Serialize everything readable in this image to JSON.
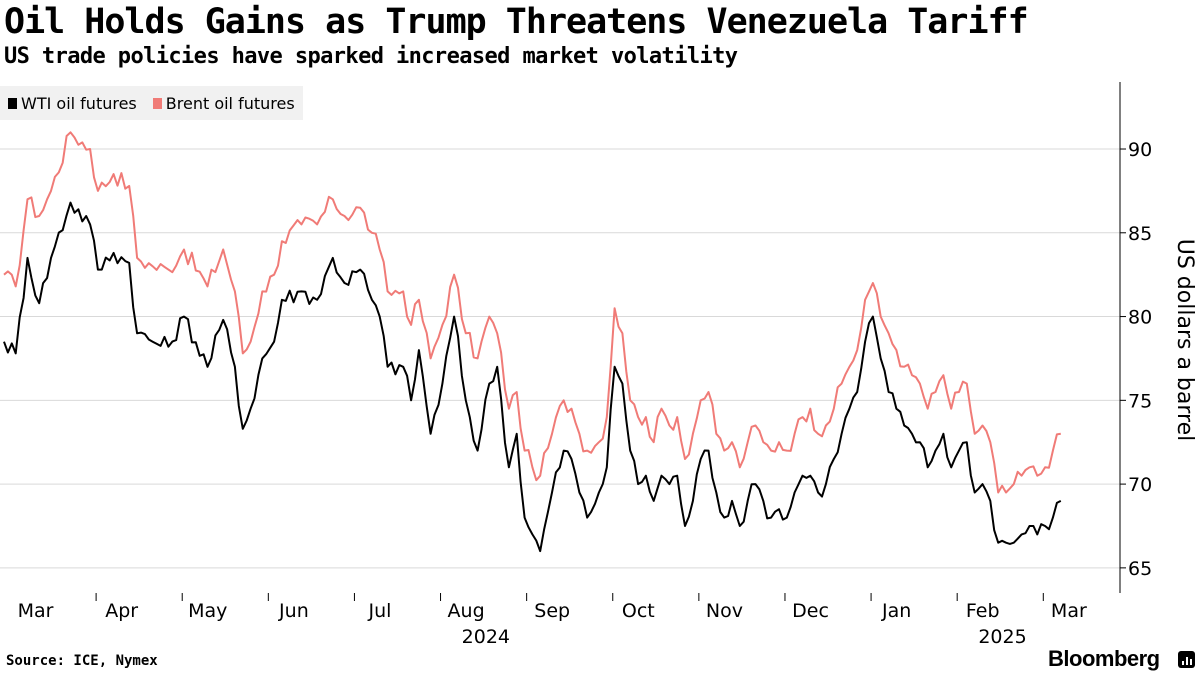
{
  "chart_data": {
    "type": "line",
    "title": "Oil Holds Gains as Trump Threatens Venezuela Tariff",
    "subtitle": "US trade policies have sparked increased market volatility",
    "ylabel": "US dollars a barrel",
    "ylim": [
      63.5,
      94
    ],
    "yticks": [
      65,
      70,
      75,
      80,
      85,
      90
    ],
    "grid": true,
    "legend_position": "top-left",
    "x_months": [
      {
        "label": "Mar",
        "index": 0
      },
      {
        "label": "Apr",
        "index": 22
      },
      {
        "label": "May",
        "index": 44
      },
      {
        "label": "Jun",
        "index": 66
      },
      {
        "label": "Jul",
        "index": 88
      },
      {
        "label": "Aug",
        "index": 110
      },
      {
        "label": "Sep",
        "index": 132
      },
      {
        "label": "Oct",
        "index": 154
      },
      {
        "label": "Nov",
        "index": 176
      },
      {
        "label": "Dec",
        "index": 198
      },
      {
        "label": "Jan",
        "index": 220
      },
      {
        "label": "Feb",
        "index": 242
      },
      {
        "label": "Mar",
        "index": 264
      }
    ],
    "x_years": [
      {
        "label": "2024",
        "index": 110
      },
      {
        "label": "2025",
        "index": 242
      }
    ],
    "x_count": 280,
    "series": [
      {
        "name": "WTI oil futures",
        "color": "#000000",
        "anchors": [
          [
            0,
            78.5
          ],
          [
            3,
            77.8
          ],
          [
            6,
            83.5
          ],
          [
            9,
            80.8
          ],
          [
            12,
            83.5
          ],
          [
            17,
            86.8
          ],
          [
            22,
            85.5
          ],
          [
            24,
            82.8
          ],
          [
            28,
            83.8
          ],
          [
            32,
            83.2
          ],
          [
            34,
            79
          ],
          [
            38,
            78.5
          ],
          [
            42,
            78.2
          ],
          [
            46,
            80
          ],
          [
            52,
            77
          ],
          [
            56,
            79.8
          ],
          [
            59,
            77
          ],
          [
            61,
            73.3
          ],
          [
            63,
            74.5
          ],
          [
            66,
            77.5
          ],
          [
            69,
            78.5
          ],
          [
            71,
            81
          ],
          [
            76,
            81.5
          ],
          [
            80,
            81
          ],
          [
            84,
            83.5
          ],
          [
            87,
            82
          ],
          [
            91,
            82.8
          ],
          [
            94,
            81
          ],
          [
            96,
            80
          ],
          [
            98,
            77
          ],
          [
            102,
            77
          ],
          [
            104,
            75
          ],
          [
            106,
            78
          ],
          [
            109,
            73
          ],
          [
            112,
            76
          ],
          [
            115,
            80
          ],
          [
            118,
            75
          ],
          [
            121,
            72
          ],
          [
            124,
            76
          ],
          [
            126,
            77
          ],
          [
            129,
            71
          ],
          [
            131,
            73
          ],
          [
            133,
            68
          ],
          [
            135,
            67
          ],
          [
            137,
            66
          ],
          [
            140,
            69.5
          ],
          [
            143,
            72
          ],
          [
            145,
            71.5
          ],
          [
            147,
            69.5
          ],
          [
            149,
            68
          ],
          [
            152,
            69.5
          ],
          [
            154,
            71
          ],
          [
            156,
            77
          ],
          [
            158,
            76
          ],
          [
            160,
            72
          ],
          [
            162,
            70
          ],
          [
            164,
            70.5
          ],
          [
            166,
            69
          ],
          [
            168,
            70.5
          ],
          [
            170,
            70
          ],
          [
            172,
            70.5
          ],
          [
            174,
            67.5
          ],
          [
            176,
            69
          ],
          [
            178,
            71.5
          ],
          [
            180,
            72
          ],
          [
            182,
            69.5
          ],
          [
            184,
            68
          ],
          [
            186,
            69
          ],
          [
            188,
            67.5
          ],
          [
            190,
            69
          ],
          [
            192,
            70
          ],
          [
            194,
            69
          ],
          [
            196,
            68
          ],
          [
            198,
            68.5
          ],
          [
            200,
            68
          ],
          [
            202,
            69.5
          ],
          [
            204,
            70.5
          ],
          [
            206,
            70.5
          ],
          [
            208,
            69.5
          ],
          [
            210,
            70
          ],
          [
            212,
            71.5
          ],
          [
            214,
            73
          ],
          [
            216,
            74.5
          ],
          [
            218,
            75.5
          ],
          [
            220,
            78.5
          ],
          [
            222,
            80
          ],
          [
            224,
            77.5
          ],
          [
            226,
            75.5
          ],
          [
            228,
            74.5
          ],
          [
            230,
            73.5
          ],
          [
            232,
            73
          ],
          [
            234,
            72.5
          ],
          [
            236,
            71
          ],
          [
            238,
            72
          ],
          [
            240,
            73
          ],
          [
            242,
            71
          ],
          [
            244,
            72
          ],
          [
            246,
            72.5
          ],
          [
            248,
            69.5
          ],
          [
            250,
            70
          ],
          [
            252,
            69
          ],
          [
            254,
            66.5
          ],
          [
            256,
            66.5
          ],
          [
            258,
            66.5
          ],
          [
            260,
            67
          ],
          [
            262,
            67.5
          ],
          [
            264,
            67
          ],
          [
            266,
            67.5
          ],
          [
            268,
            68
          ],
          [
            270,
            69
          ]
        ]
      },
      {
        "name": "Brent oil futures",
        "color": "#f07b77",
        "anchors": [
          [
            0,
            82.5
          ],
          [
            3,
            81.8
          ],
          [
            6,
            87
          ],
          [
            9,
            86
          ],
          [
            12,
            87.5
          ],
          [
            17,
            91
          ],
          [
            22,
            90
          ],
          [
            24,
            87.5
          ],
          [
            28,
            88.5
          ],
          [
            32,
            87.8
          ],
          [
            34,
            83.5
          ],
          [
            38,
            83
          ],
          [
            42,
            82.8
          ],
          [
            46,
            84
          ],
          [
            52,
            81.8
          ],
          [
            56,
            84
          ],
          [
            59,
            81.5
          ],
          [
            61,
            77.8
          ],
          [
            63,
            78.5
          ],
          [
            66,
            81.5
          ],
          [
            69,
            82.5
          ],
          [
            71,
            84.5
          ],
          [
            76,
            85.5
          ],
          [
            80,
            85.5
          ],
          [
            84,
            87
          ],
          [
            87,
            86
          ],
          [
            91,
            86.5
          ],
          [
            94,
            85
          ],
          [
            96,
            84
          ],
          [
            98,
            81.5
          ],
          [
            102,
            81.5
          ],
          [
            104,
            79.5
          ],
          [
            106,
            81
          ],
          [
            109,
            77.5
          ],
          [
            112,
            79.5
          ],
          [
            115,
            82.5
          ],
          [
            118,
            79
          ],
          [
            121,
            77.5
          ],
          [
            124,
            80
          ],
          [
            126,
            79
          ],
          [
            129,
            74.5
          ],
          [
            131,
            75.5
          ],
          [
            133,
            72
          ],
          [
            135,
            71
          ],
          [
            137,
            70.5
          ],
          [
            140,
            73
          ],
          [
            143,
            75
          ],
          [
            145,
            74.5
          ],
          [
            147,
            73
          ],
          [
            149,
            72
          ],
          [
            152,
            72.5
          ],
          [
            154,
            74
          ],
          [
            156,
            80.5
          ],
          [
            158,
            79
          ],
          [
            160,
            75
          ],
          [
            162,
            74
          ],
          [
            164,
            74
          ],
          [
            166,
            72.5
          ],
          [
            168,
            74.5
          ],
          [
            170,
            73.5
          ],
          [
            172,
            74
          ],
          [
            174,
            71.5
          ],
          [
            176,
            73
          ],
          [
            178,
            75
          ],
          [
            180,
            75.5
          ],
          [
            182,
            73
          ],
          [
            184,
            72
          ],
          [
            186,
            72.5
          ],
          [
            188,
            71
          ],
          [
            190,
            72.5
          ],
          [
            192,
            73.5
          ],
          [
            194,
            72.5
          ],
          [
            196,
            72
          ],
          [
            198,
            72.5
          ],
          [
            200,
            72
          ],
          [
            202,
            73
          ],
          [
            204,
            74
          ],
          [
            206,
            74.5
          ],
          [
            208,
            73
          ],
          [
            210,
            73.5
          ],
          [
            212,
            74.5
          ],
          [
            214,
            76
          ],
          [
            216,
            77
          ],
          [
            218,
            78
          ],
          [
            220,
            81
          ],
          [
            222,
            82
          ],
          [
            224,
            80
          ],
          [
            226,
            79
          ],
          [
            228,
            78
          ],
          [
            230,
            77
          ],
          [
            232,
            76.5
          ],
          [
            234,
            76
          ],
          [
            236,
            74.5
          ],
          [
            238,
            75.5
          ],
          [
            240,
            76.5
          ],
          [
            242,
            74.5
          ],
          [
            244,
            75.5
          ],
          [
            246,
            76
          ],
          [
            248,
            73
          ],
          [
            250,
            73.5
          ],
          [
            252,
            72.5
          ],
          [
            254,
            69.5
          ],
          [
            256,
            69.5
          ],
          [
            258,
            70
          ],
          [
            260,
            70.5
          ],
          [
            262,
            71
          ],
          [
            264,
            70.5
          ],
          [
            266,
            71
          ],
          [
            268,
            72
          ],
          [
            270,
            73
          ]
        ]
      }
    ]
  },
  "legend": {
    "items": [
      {
        "label": "WTI oil futures",
        "color": "#000000"
      },
      {
        "label": "Brent oil futures",
        "color": "#f07b77"
      }
    ]
  },
  "footer": {
    "source": "Source: ICE, Nymex",
    "brand": "Bloomberg"
  }
}
